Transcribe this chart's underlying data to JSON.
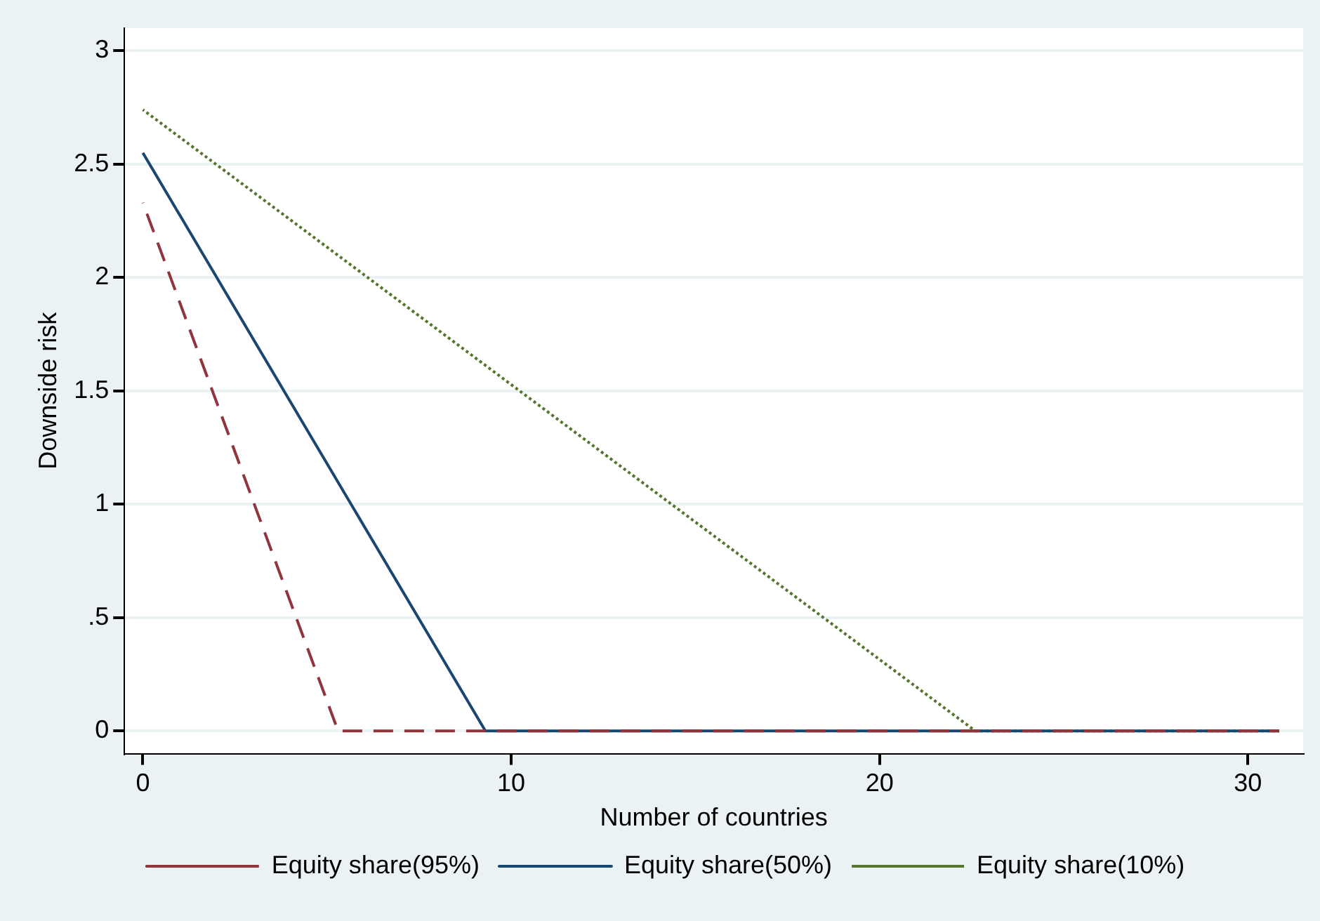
{
  "chart_data": {
    "type": "line",
    "xlabel": "Number of countries",
    "ylabel": "Downside risk",
    "xlim": [
      -0.5,
      31.5
    ],
    "xticks": [
      0,
      10,
      20,
      30
    ],
    "ylim": [
      -0.1,
      3.1
    ],
    "yticks": [
      0,
      {
        "value": 0.5,
        "label": ".5"
      },
      1,
      {
        "value": 1.5,
        "label": "1.5"
      },
      2,
      {
        "value": 2.5,
        "label": "2.5"
      },
      3
    ],
    "grid": "y",
    "legend": "bottom",
    "marker": "none",
    "series": [
      {
        "name": "Equity share(50%)",
        "color": "#1a476f",
        "line_style": "solid",
        "x": [
          0,
          9.3,
          30.85
        ],
        "values": [
          2.55,
          0,
          0
        ]
      },
      {
        "name": "Equity share(95%)",
        "color": "#90353b",
        "line_style": "dashed",
        "x": [
          0,
          5.3,
          30.85
        ],
        "values": [
          2.33,
          0,
          0
        ]
      },
      {
        "name": "Equity share(10%)",
        "color": "#55752f",
        "line_style": "dotted",
        "x": [
          0,
          22.6,
          30.85
        ],
        "values": [
          2.74,
          0,
          0
        ]
      }
    ]
  }
}
